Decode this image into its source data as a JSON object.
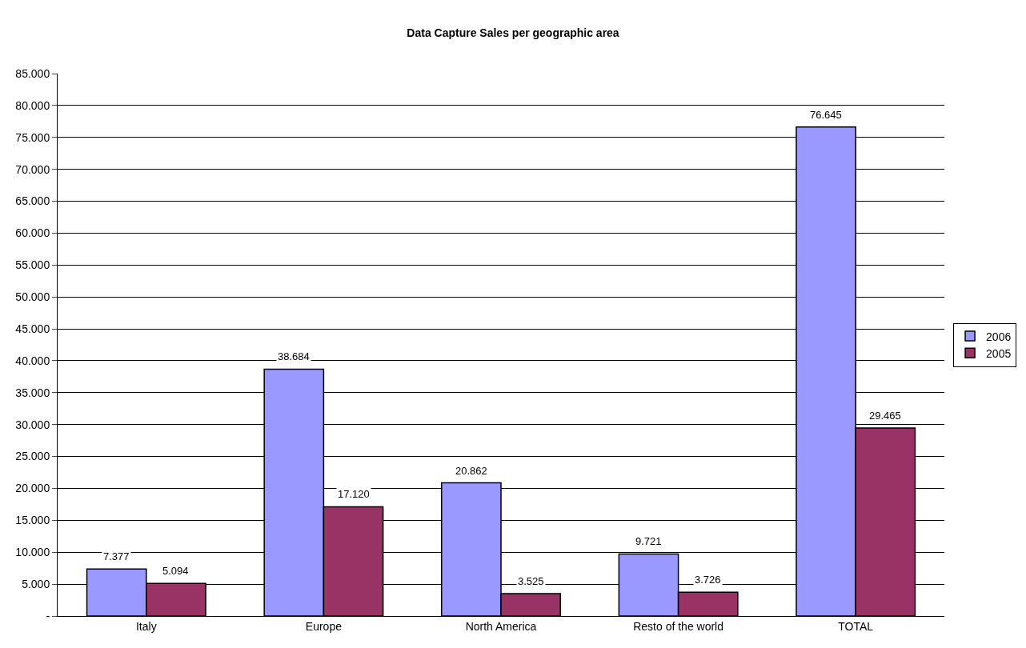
{
  "chart_data": {
    "type": "bar",
    "title": "Data Capture Sales per geographic area",
    "categories": [
      "Italy",
      "Europe",
      "North America",
      "Resto of the world",
      "TOTAL"
    ],
    "series": [
      {
        "name": "2006",
        "color": "#9999ff",
        "values": [
          7377,
          38684,
          20862,
          9721,
          76645
        ],
        "value_labels": [
          "7.377",
          "38.684",
          "20.862",
          "9.721",
          "76.645"
        ]
      },
      {
        "name": "2005",
        "color": "#993366",
        "values": [
          5094,
          17120,
          3525,
          3726,
          29465
        ],
        "value_labels": [
          "5.094",
          "17.120",
          "3.525",
          "3.726",
          "29.465"
        ]
      }
    ],
    "ylim": [
      0,
      85000
    ],
    "yticks": [
      {
        "value": 0,
        "label": "-"
      },
      {
        "value": 5000,
        "label": "5.000"
      },
      {
        "value": 10000,
        "label": "10.000"
      },
      {
        "value": 15000,
        "label": "15.000"
      },
      {
        "value": 20000,
        "label": "20.000"
      },
      {
        "value": 25000,
        "label": "25.000"
      },
      {
        "value": 30000,
        "label": "30.000"
      },
      {
        "value": 35000,
        "label": "35.000"
      },
      {
        "value": 40000,
        "label": "40.000"
      },
      {
        "value": 45000,
        "label": "45.000"
      },
      {
        "value": 50000,
        "label": "50.000"
      },
      {
        "value": 55000,
        "label": "55.000"
      },
      {
        "value": 60000,
        "label": "60.000"
      },
      {
        "value": 65000,
        "label": "65.000"
      },
      {
        "value": 70000,
        "label": "70.000"
      },
      {
        "value": 75000,
        "label": "75.000"
      },
      {
        "value": 80000,
        "label": "80.000"
      },
      {
        "value": 85000,
        "label": "85.000"
      }
    ],
    "grid": "y",
    "legend": "right"
  }
}
